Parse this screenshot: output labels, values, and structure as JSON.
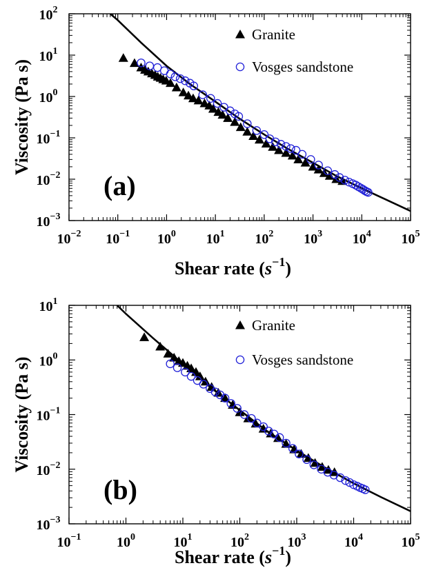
{
  "chart_data": [
    {
      "type": "scatter",
      "panel_label": "(a)",
      "xlabel": "Shear rate",
      "xlabel_unit": "s",
      "xlabel_exponent": "−1",
      "ylabel": "Viscosity (Pa s)",
      "x_scale": "log",
      "y_scale": "log",
      "xlim": [
        0.01,
        100000
      ],
      "ylim": [
        0.001,
        100
      ],
      "x_ticks": [
        {
          "value": 0.01,
          "base": "10",
          "exp": "−2"
        },
        {
          "value": 0.1,
          "base": "10",
          "exp": "−1"
        },
        {
          "value": 1,
          "base": "10",
          "exp": "0"
        },
        {
          "value": 10,
          "base": "10",
          "exp": "1"
        },
        {
          "value": 100,
          "base": "10",
          "exp": "2"
        },
        {
          "value": 1000,
          "base": "10",
          "exp": "3"
        },
        {
          "value": 10000,
          "base": "10",
          "exp": "4"
        },
        {
          "value": 100000,
          "base": "10",
          "exp": "5"
        }
      ],
      "y_ticks": [
        {
          "value": 0.001,
          "base": "10",
          "exp": "−3"
        },
        {
          "value": 0.01,
          "base": "10",
          "exp": "−2"
        },
        {
          "value": 0.1,
          "base": "10",
          "exp": "−1"
        },
        {
          "value": 1,
          "base": "10",
          "exp": "0"
        },
        {
          "value": 10,
          "base": "10",
          "exp": "1"
        },
        {
          "value": 100,
          "base": "10",
          "exp": "2"
        }
      ],
      "grid": false,
      "legend_position": "top-right",
      "series": [
        {
          "name": "Granite",
          "marker": "filled-triangle",
          "color": "#000000",
          "x": [
            0.13,
            0.22,
            0.3,
            0.36,
            0.42,
            0.5,
            0.58,
            0.66,
            0.75,
            0.85,
            0.98,
            1.2,
            1.6,
            2.2,
            2.8,
            3.5,
            4.5,
            6.0,
            7.5,
            9.0,
            11.5,
            14,
            18,
            25,
            33,
            45,
            60,
            80,
            110,
            150,
            200,
            280,
            380,
            500,
            700,
            1000,
            1300,
            1700,
            2200,
            3000,
            4000
          ],
          "y": [
            8.5,
            6.4,
            5.0,
            4.4,
            4.0,
            3.6,
            3.3,
            3.0,
            2.8,
            2.6,
            2.4,
            2.1,
            1.65,
            1.25,
            1.05,
            0.9,
            0.8,
            0.68,
            0.6,
            0.5,
            0.42,
            0.36,
            0.3,
            0.24,
            0.18,
            0.14,
            0.11,
            0.09,
            0.072,
            0.06,
            0.05,
            0.043,
            0.037,
            0.03,
            0.025,
            0.02,
            0.017,
            0.014,
            0.012,
            0.01,
            0.009
          ]
        },
        {
          "name": "Vosges sandstone",
          "marker": "open-circle",
          "color": "#2020d8",
          "x": [
            0.3,
            0.45,
            0.65,
            0.9,
            1.2,
            1.5,
            1.9,
            2.4,
            3.0,
            3.6,
            5.5,
            8.0,
            11,
            15,
            20,
            25,
            30,
            45,
            70,
            100,
            130,
            170,
            220,
            280,
            350,
            450,
            600,
            900,
            1300,
            2000,
            2800,
            3500,
            4500,
            5500,
            6500,
            7500,
            8500,
            9500,
            10500,
            11500,
            12500,
            13500
          ],
          "y": [
            6.5,
            5.5,
            5.0,
            4.2,
            3.5,
            3.0,
            2.7,
            2.4,
            2.1,
            1.8,
            1.1,
            0.9,
            0.68,
            0.55,
            0.45,
            0.38,
            0.33,
            0.22,
            0.15,
            0.12,
            0.095,
            0.08,
            0.07,
            0.062,
            0.055,
            0.05,
            0.04,
            0.03,
            0.022,
            0.016,
            0.013,
            0.011,
            0.0095,
            0.0085,
            0.0078,
            0.0072,
            0.0066,
            0.0061,
            0.0057,
            0.0053,
            0.005,
            0.0048
          ]
        },
        {
          "kind": "line",
          "color": "#000000",
          "x": [
            0.07,
            0.1,
            0.3,
            1,
            3,
            10,
            30,
            100,
            300,
            1000,
            3000,
            10000,
            30000,
            100000
          ],
          "y": [
            100,
            70,
            20,
            5.5,
            2.0,
            0.75,
            0.3,
            0.12,
            0.055,
            0.025,
            0.012,
            0.006,
            0.0033,
            0.0017
          ]
        }
      ]
    },
    {
      "type": "scatter",
      "panel_label": "(b)",
      "xlabel": "Shear rate",
      "xlabel_unit": "s",
      "xlabel_exponent": "−1",
      "ylabel": "Viscosity (Pa s)",
      "x_scale": "log",
      "y_scale": "log",
      "xlim": [
        0.1,
        100000
      ],
      "ylim": [
        0.001,
        10
      ],
      "x_ticks": [
        {
          "value": 0.1,
          "base": "10",
          "exp": "−1"
        },
        {
          "value": 1,
          "base": "10",
          "exp": "0"
        },
        {
          "value": 10,
          "base": "10",
          "exp": "1"
        },
        {
          "value": 100,
          "base": "10",
          "exp": "2"
        },
        {
          "value": 1000,
          "base": "10",
          "exp": "3"
        },
        {
          "value": 10000,
          "base": "10",
          "exp": "4"
        },
        {
          "value": 100000,
          "base": "10",
          "exp": "5"
        }
      ],
      "y_ticks": [
        {
          "value": 0.001,
          "base": "10",
          "exp": "−3"
        },
        {
          "value": 0.01,
          "base": "10",
          "exp": "−2"
        },
        {
          "value": 0.1,
          "base": "10",
          "exp": "−1"
        },
        {
          "value": 1,
          "base": "10",
          "exp": "0"
        },
        {
          "value": 10,
          "base": "10",
          "exp": "1"
        }
      ],
      "grid": false,
      "legend_position": "top-right",
      "series": [
        {
          "name": "Granite",
          "marker": "filled-triangle",
          "color": "#000000",
          "x": [
            2.1,
            4.0,
            5.5,
            7.0,
            8.5,
            10,
            12,
            14,
            17,
            20,
            25,
            32,
            42,
            55,
            75,
            100,
            140,
            190,
            260,
            350,
            470,
            650,
            900,
            1200,
            1600,
            2100,
            2800,
            3600,
            4600
          ],
          "y": [
            2.6,
            1.75,
            1.3,
            1.1,
            0.95,
            0.88,
            0.78,
            0.7,
            0.6,
            0.5,
            0.4,
            0.32,
            0.25,
            0.2,
            0.15,
            0.11,
            0.085,
            0.068,
            0.055,
            0.045,
            0.037,
            0.029,
            0.023,
            0.019,
            0.016,
            0.013,
            0.011,
            0.0097,
            0.0088
          ]
        },
        {
          "name": "Vosges sandstone",
          "marker": "open-circle",
          "color": "#2020d8",
          "x": [
            6,
            8,
            11,
            14,
            18,
            23,
            30,
            37,
            45,
            55,
            70,
            90,
            120,
            160,
            200,
            260,
            320,
            400,
            500,
            650,
            850,
            1100,
            1500,
            2000,
            2700,
            3500,
            4500,
            5800,
            7200,
            8500,
            10000,
            11500,
            13000,
            14500,
            16000
          ],
          "y": [
            0.85,
            0.72,
            0.6,
            0.5,
            0.42,
            0.36,
            0.3,
            0.26,
            0.23,
            0.2,
            0.16,
            0.13,
            0.1,
            0.085,
            0.07,
            0.06,
            0.05,
            0.044,
            0.038,
            0.03,
            0.024,
            0.019,
            0.015,
            0.012,
            0.01,
            0.0088,
            0.0078,
            0.007,
            0.0062,
            0.0057,
            0.0052,
            0.0049,
            0.0046,
            0.0044,
            0.0042
          ]
        },
        {
          "kind": "line",
          "color": "#000000",
          "x": [
            0.7,
            1,
            3,
            10,
            30,
            100,
            300,
            1000,
            3000,
            10000,
            30000,
            100000
          ],
          "y": [
            10,
            7.0,
            2.5,
            0.85,
            0.32,
            0.12,
            0.05,
            0.022,
            0.011,
            0.0055,
            0.0031,
            0.0017
          ]
        }
      ]
    }
  ]
}
